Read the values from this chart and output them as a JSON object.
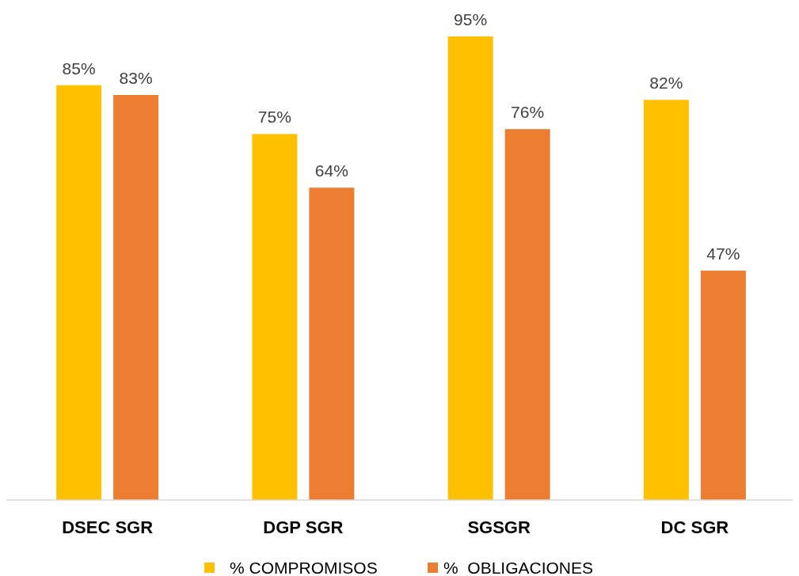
{
  "chart_data": {
    "type": "bar",
    "categories": [
      "DSEC SGR",
      "DGP SGR",
      "SGSGR",
      "DC SGR"
    ],
    "series": [
      {
        "name": "% COMPROMISOS",
        "color": "#ffc000",
        "values": [
          85,
          75,
          95,
          82
        ],
        "value_labels": [
          "85%",
          "75%",
          "95%",
          "82%"
        ]
      },
      {
        "name": "%  OBLIGACIONES",
        "color": "#ed7d31",
        "values": [
          83,
          64,
          76,
          47
        ],
        "value_labels": [
          "83%",
          "64%",
          "76%",
          "47%"
        ]
      }
    ],
    "legend": "bottom"
  }
}
